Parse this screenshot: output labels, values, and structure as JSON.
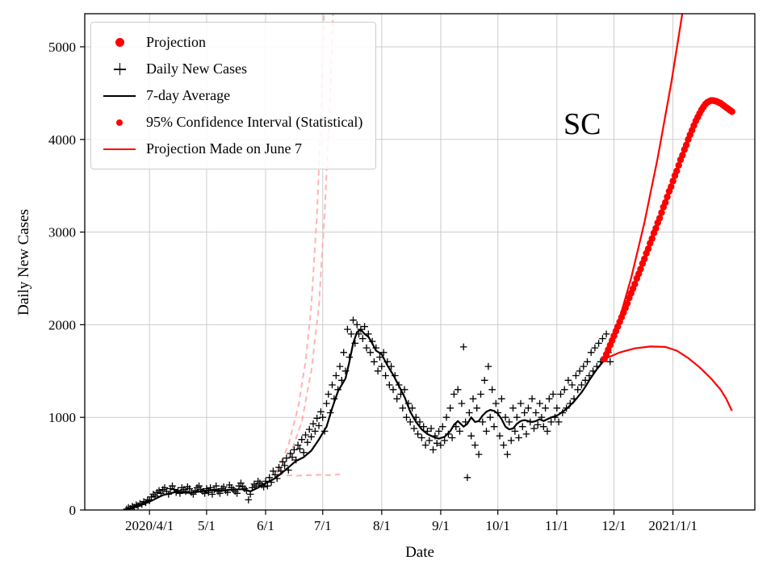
{
  "figure": {
    "annotation": "SC",
    "xlabel": "Date",
    "ylabel": "Daily New Cases",
    "background": "#ffffff"
  },
  "legend": {
    "entries": [
      {
        "label": "Projection",
        "marker": "red-dot-large",
        "color": "#ff0000"
      },
      {
        "label": "Daily New Cases",
        "marker": "black-plus",
        "color": "#000000"
      },
      {
        "label": "7-day Average",
        "marker": "black-line",
        "color": "#000000"
      },
      {
        "label": "95% Confidence Interval (Statistical)",
        "marker": "red-dot-small",
        "color": "#ff0000"
      },
      {
        "label": "Projection Made on June 7",
        "marker": "red-line",
        "color": "#ff0000"
      }
    ]
  },
  "chart_data": {
    "type": "line+scatter",
    "title": "",
    "xlabel": "Date",
    "ylabel": "Daily New Cases",
    "x_unit": "days since 2020-03-01",
    "xlim": [
      -3,
      349
    ],
    "ylim": [
      0,
      5357
    ],
    "grid": true,
    "grid_color": "#cccccc",
    "y_ticks": [
      0,
      1000,
      2000,
      3000,
      4000,
      5000
    ],
    "x_ticks": [
      {
        "day": 31,
        "label": "2020/4/1"
      },
      {
        "day": 61,
        "label": "5/1"
      },
      {
        "day": 92,
        "label": "6/1"
      },
      {
        "day": 122,
        "label": "7/1"
      },
      {
        "day": 153,
        "label": "8/1"
      },
      {
        "day": 184,
        "label": "9/1"
      },
      {
        "day": 214,
        "label": "10/1"
      },
      {
        "day": 245,
        "label": "11/1"
      },
      {
        "day": 275,
        "label": "12/1"
      },
      {
        "day": 306,
        "label": "2021/1/1"
      }
    ],
    "series": {
      "daily_new_cases": {
        "name": "Daily New Cases",
        "type": "scatter-plus",
        "color": "#000000",
        "start_day": 19,
        "values": [
          10,
          25,
          15,
          40,
          30,
          55,
          45,
          70,
          60,
          90,
          80,
          110,
          100,
          140,
          170,
          150,
          190,
          210,
          180,
          220,
          240,
          200,
          170,
          230,
          260,
          220,
          190,
          210,
          180,
          240,
          220,
          200,
          250,
          230,
          190,
          170,
          210,
          240,
          260,
          220,
          200,
          180,
          230,
          190,
          240,
          170,
          220,
          260,
          200,
          180,
          230,
          250,
          210,
          190,
          270,
          240,
          220,
          200,
          180,
          260,
          290,
          250,
          230,
          210,
          110,
          170,
          240,
          280,
          260,
          310,
          290,
          270,
          250,
          310,
          260,
          350,
          300,
          420,
          380,
          340,
          460,
          420,
          520,
          480,
          560,
          430,
          610,
          570,
          650,
          540,
          700,
          660,
          760,
          620,
          810,
          730,
          870,
          790,
          930,
          850,
          990,
          910,
          1060,
          1000,
          850,
          1150,
          1250,
          1050,
          1350,
          1200,
          1450,
          1300,
          1550,
          1400,
          1700,
          1500,
          1950,
          1650,
          1900,
          2050,
          1800,
          2000,
          1900,
          1950,
          1850,
          1980,
          1750,
          1900,
          1700,
          1820,
          1600,
          1750,
          1500,
          1650,
          1550,
          1700,
          1450,
          1600,
          1350,
          1550,
          1300,
          1450,
          1200,
          1350,
          1250,
          1100,
          1300,
          1000,
          1150,
          950,
          1100,
          880,
          1000,
          820,
          950,
          780,
          900,
          700,
          850,
          750,
          880,
          650,
          800,
          720,
          850,
          700,
          900,
          750,
          1000,
          820,
          1100,
          780,
          1250,
          900,
          1300,
          850,
          1150,
          1760,
          950,
          350,
          1050,
          800,
          1200,
          700,
          1100,
          600,
          1250,
          950,
          1400,
          850,
          1550,
          1000,
          1300,
          900,
          1150,
          1050,
          800,
          1200,
          700,
          1000,
          600,
          950,
          750,
          1100,
          850,
          1000,
          780,
          1150,
          900,
          1050,
          820,
          1100,
          950,
          1200,
          880,
          1050,
          920,
          1150,
          1000,
          900,
          1100,
          850,
          1200,
          950,
          1250,
          1000,
          1100,
          950,
          1250,
          1050,
          1300,
          1100,
          1400,
          1150,
          1350,
          1200,
          1450,
          1300,
          1500,
          1350,
          1550,
          1400,
          1600,
          1450,
          1700,
          1500,
          1750,
          1550,
          1800,
          1600,
          1850,
          1650,
          1900,
          1700,
          1600
        ]
      },
      "seven_day_average": {
        "name": "7-day Average",
        "type": "line",
        "color": "#000000",
        "width": 2.2,
        "points": [
          [
            19,
            15
          ],
          [
            25,
            40
          ],
          [
            31,
            90
          ],
          [
            38,
            160
          ],
          [
            45,
            195
          ],
          [
            52,
            185
          ],
          [
            58,
            200
          ],
          [
            61,
            210
          ],
          [
            65,
            215
          ],
          [
            70,
            210
          ],
          [
            75,
            220
          ],
          [
            80,
            225
          ],
          [
            84,
            200
          ],
          [
            88,
            240
          ],
          [
            92,
            290
          ],
          [
            96,
            330
          ],
          [
            100,
            390
          ],
          [
            104,
            460
          ],
          [
            108,
            530
          ],
          [
            112,
            570
          ],
          [
            116,
            640
          ],
          [
            120,
            760
          ],
          [
            124,
            900
          ],
          [
            127,
            1100
          ],
          [
            130,
            1280
          ],
          [
            132,
            1350
          ],
          [
            134,
            1420
          ],
          [
            136,
            1600
          ],
          [
            138,
            1800
          ],
          [
            140,
            1920
          ],
          [
            142,
            1950
          ],
          [
            144,
            1900
          ],
          [
            146,
            1870
          ],
          [
            148,
            1800
          ],
          [
            150,
            1720
          ],
          [
            153,
            1680
          ],
          [
            156,
            1560
          ],
          [
            159,
            1460
          ],
          [
            162,
            1340
          ],
          [
            165,
            1220
          ],
          [
            168,
            1060
          ],
          [
            171,
            950
          ],
          [
            174,
            870
          ],
          [
            177,
            820
          ],
          [
            180,
            790
          ],
          [
            183,
            770
          ],
          [
            186,
            790
          ],
          [
            189,
            850
          ],
          [
            191,
            920
          ],
          [
            193,
            960
          ],
          [
            194,
            940
          ],
          [
            196,
            900
          ],
          [
            198,
            930
          ],
          [
            200,
            1000
          ],
          [
            202,
            950
          ],
          [
            204,
            960
          ],
          [
            206,
            1020
          ],
          [
            208,
            1060
          ],
          [
            210,
            1080
          ],
          [
            212,
            1070
          ],
          [
            214,
            1040
          ],
          [
            216,
            980
          ],
          [
            218,
            900
          ],
          [
            220,
            870
          ],
          [
            222,
            880
          ],
          [
            224,
            930
          ],
          [
            226,
            960
          ],
          [
            228,
            970
          ],
          [
            230,
            960
          ],
          [
            232,
            950
          ],
          [
            234,
            960
          ],
          [
            236,
            980
          ],
          [
            238,
            960
          ],
          [
            240,
            980
          ],
          [
            242,
            1000
          ],
          [
            244,
            1010
          ],
          [
            246,
            1030
          ],
          [
            248,
            1060
          ],
          [
            250,
            1090
          ],
          [
            252,
            1130
          ],
          [
            254,
            1170
          ],
          [
            256,
            1220
          ],
          [
            258,
            1270
          ],
          [
            260,
            1330
          ],
          [
            262,
            1400
          ],
          [
            264,
            1460
          ],
          [
            266,
            1520
          ],
          [
            268,
            1570
          ],
          [
            270,
            1620
          ]
        ]
      },
      "projection": {
        "name": "Projection",
        "type": "scatter-dot",
        "color": "#ff0000",
        "start_day": 270,
        "values": [
          1630,
          1680,
          1730,
          1780,
          1830,
          1880,
          1930,
          1980,
          2030,
          2080,
          2130,
          2180,
          2230,
          2290,
          2340,
          2390,
          2440,
          2500,
          2550,
          2600,
          2660,
          2710,
          2770,
          2820,
          2880,
          2930,
          2990,
          3040,
          3100,
          3150,
          3210,
          3270,
          3320,
          3380,
          3440,
          3490,
          3550,
          3610,
          3660,
          3720,
          3780,
          3830,
          3890,
          3940,
          4000,
          4050,
          4100,
          4150,
          4200,
          4240,
          4280,
          4320,
          4350,
          4380,
          4400,
          4410,
          4420,
          4420,
          4415,
          4410,
          4400,
          4390,
          4375,
          4360,
          4345,
          4330,
          4315,
          4300
        ]
      },
      "ci_upper": {
        "name": "95% CI upper",
        "type": "line",
        "color": "#ff0000",
        "width": 2.2,
        "points": [
          [
            270,
            1630
          ],
          [
            277,
            2000
          ],
          [
            284,
            2500
          ],
          [
            291,
            3100
          ],
          [
            298,
            3800
          ],
          [
            305,
            4600
          ],
          [
            312,
            5500
          ],
          [
            315,
            6100
          ]
        ]
      },
      "ci_lower": {
        "name": "95% CI lower",
        "type": "line",
        "color": "#ff0000",
        "width": 2.2,
        "points": [
          [
            270,
            1630
          ],
          [
            278,
            1700
          ],
          [
            286,
            1745
          ],
          [
            294,
            1765
          ],
          [
            302,
            1760
          ],
          [
            308,
            1720
          ],
          [
            314,
            1640
          ],
          [
            320,
            1540
          ],
          [
            326,
            1420
          ],
          [
            331,
            1300
          ],
          [
            334,
            1200
          ],
          [
            337,
            1070
          ]
        ]
      },
      "june7_upper": {
        "name": "Projection Made on June 7 (upper)",
        "type": "line",
        "dash": true,
        "color": "#ffb3b3",
        "width": 2,
        "points": [
          [
            98,
            420
          ],
          [
            104,
            700
          ],
          [
            109,
            1100
          ],
          [
            113,
            1600
          ],
          [
            116,
            2200
          ],
          [
            119,
            3200
          ],
          [
            121,
            4200
          ],
          [
            123,
            5600
          ]
        ]
      },
      "june7_center": {
        "name": "Projection Made on June 7 (center)",
        "type": "line",
        "dash": true,
        "color": "#ffb3b3",
        "width": 2,
        "points": [
          [
            98,
            400
          ],
          [
            105,
            600
          ],
          [
            111,
            950
          ],
          [
            116,
            1500
          ],
          [
            120,
            2200
          ],
          [
            123,
            3200
          ],
          [
            126,
            4500
          ],
          [
            128,
            5700
          ]
        ]
      },
      "june7_lower": {
        "name": "Projection Made on June 7 (lower)",
        "type": "line",
        "dash": true,
        "color": "#ffb3b3",
        "width": 2,
        "points": [
          [
            98,
            390
          ],
          [
            103,
            375
          ],
          [
            108,
            370
          ],
          [
            114,
            375
          ],
          [
            120,
            380
          ],
          [
            126,
            375
          ],
          [
            131,
            385
          ]
        ]
      }
    }
  }
}
